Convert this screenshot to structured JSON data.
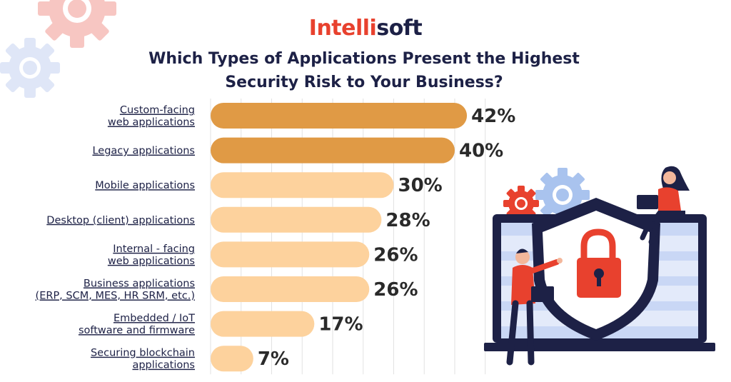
{
  "brand": {
    "part1": "Intelli",
    "part2": "soft"
  },
  "title_line1": "Which Types of Applications Present the Highest",
  "title_line2": "Security Risk to Your Business?",
  "colors": {
    "highlight": "#e09a45",
    "normal": "#fdd29d",
    "brand_red": "#e8412e",
    "navy": "#1d2146"
  },
  "chart_data": {
    "type": "bar",
    "orientation": "horizontal",
    "categories": [
      [
        "Custom-facing",
        "web applications"
      ],
      [
        "Legacy applications"
      ],
      [
        "Mobile applications"
      ],
      [
        "Desktop (client) applications"
      ],
      [
        "Internal - facing",
        "web applications"
      ],
      [
        "Business applications",
        "(ERP, SCM, MES, HR SRM, etc.)"
      ],
      [
        "Embedded / IoT",
        "software and firmware"
      ],
      [
        "Securing blockchain",
        "applications"
      ]
    ],
    "values": [
      42,
      40,
      30,
      28,
      26,
      26,
      17,
      7
    ],
    "value_labels": [
      "42%",
      "40%",
      "30%",
      "28%",
      "26%",
      "26%",
      "17%",
      "7%"
    ],
    "highlighted": [
      true,
      true,
      false,
      false,
      false,
      false,
      false,
      false
    ],
    "xlim": [
      0,
      45
    ],
    "grid": true
  }
}
